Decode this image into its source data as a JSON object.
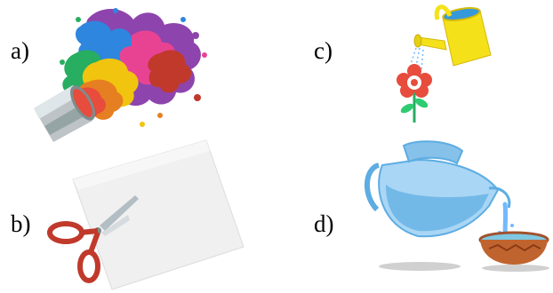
{
  "options": [
    {
      "label": "a)",
      "picture": "paint-can-splash"
    },
    {
      "label": "b)",
      "picture": "scissors-cutting-paper"
    },
    {
      "label": "c)",
      "picture": "watering-can-flower"
    },
    {
      "label": "d)",
      "picture": "jug-pouring-water-into-bowl"
    }
  ]
}
